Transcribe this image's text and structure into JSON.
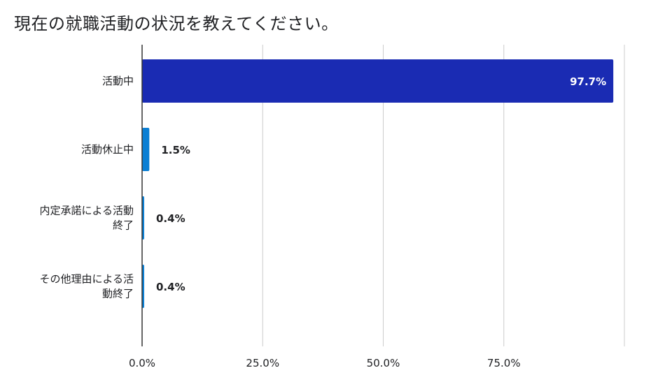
{
  "chart_data": {
    "type": "bar",
    "orientation": "horizontal",
    "title": "現在の就職活動の状況を教えてください。",
    "categories": [
      [
        "活動中"
      ],
      [
        "活動休止中"
      ],
      [
        "内定承諾による活動",
        "終了"
      ],
      [
        "その他理由による活",
        "動終了"
      ]
    ],
    "values": [
      97.7,
      1.5,
      0.4,
      0.4
    ],
    "data_labels": [
      "97.7%",
      "1.5%",
      "0.4%",
      "0.4%"
    ],
    "bar_colors": [
      "#1a2bb3",
      "#0b7fd4",
      "#0b7fd4",
      "#0b7fd4"
    ],
    "xlim": [
      0,
      100
    ],
    "ticks": [
      0,
      25,
      50,
      75
    ],
    "tick_labels": [
      "0.0%",
      "25.0%",
      "50.0%",
      "75.0%"
    ],
    "grid": true,
    "xlabel": "",
    "ylabel": ""
  }
}
